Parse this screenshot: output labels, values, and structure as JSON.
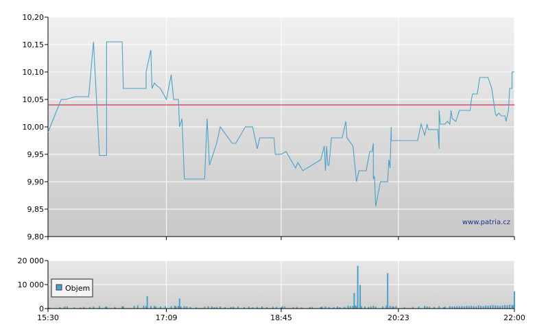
{
  "watermark": "www.patria.cz",
  "colors": {
    "price_line": "#4aa0c8",
    "reference_line": "#c8102e",
    "volume_bar": "#4aa0c8",
    "grid": "#ffffff",
    "plot_bg_top": "#f0f0f0",
    "plot_bg_bottom": "#c8c8c8"
  },
  "chart_data": [
    {
      "type": "line",
      "y_ticks": [
        "10,20",
        "10,15",
        "10,10",
        "10,05",
        "10,00",
        "9,95",
        "9,90",
        "9,85",
        "9,80"
      ],
      "ylim": [
        9.8,
        10.2
      ],
      "xlim": [
        "15:30",
        "22:00"
      ],
      "x_ticks": [
        "15:30",
        "17:09",
        "18:45",
        "20:23",
        "22:00"
      ],
      "reference_line": 10.04,
      "grid": true,
      "series": [
        {
          "points": [
            [
              "15:30",
              9.99
            ],
            [
              "15:41",
              10.05
            ],
            [
              "15:45",
              10.05
            ],
            [
              "15:53",
              10.055
            ],
            [
              "16:04",
              10.055
            ],
            [
              "16:08",
              10.155
            ],
            [
              "16:13",
              9.948
            ],
            [
              "16:19",
              9.948
            ],
            [
              "16:19",
              10.155
            ],
            [
              "16:32",
              10.155
            ],
            [
              "16:33",
              10.07
            ],
            [
              "16:52",
              10.07
            ],
            [
              "16:52",
              10.1
            ],
            [
              "16:56",
              10.14
            ],
            [
              "16:57",
              10.07
            ],
            [
              "16:59",
              10.08
            ],
            [
              "17:01",
              10.075
            ],
            [
              "17:04",
              10.07
            ],
            [
              "17:09",
              10.05
            ],
            [
              "17:13",
              10.095
            ],
            [
              "17:15",
              10.05
            ],
            [
              "17:19",
              10.05
            ],
            [
              "17:20",
              10.0
            ],
            [
              "17:22",
              10.015
            ],
            [
              "17:24",
              9.905
            ],
            [
              "17:41",
              9.905
            ],
            [
              "17:43",
              10.015
            ],
            [
              "17:45",
              9.93
            ],
            [
              "17:51",
              9.97
            ],
            [
              "17:54",
              10.0
            ],
            [
              "18:04",
              9.97
            ],
            [
              "18:07",
              9.97
            ],
            [
              "18:15",
              10.0
            ],
            [
              "18:21",
              10.0
            ],
            [
              "18:25",
              9.96
            ],
            [
              "18:27",
              9.98
            ],
            [
              "18:39",
              9.98
            ],
            [
              "18:40",
              9.95
            ],
            [
              "18:45",
              9.95
            ],
            [
              "18:49",
              9.955
            ],
            [
              "18:57",
              9.925
            ],
            [
              "18:59",
              9.935
            ],
            [
              "19:03",
              9.92
            ],
            [
              "19:18",
              9.94
            ],
            [
              "19:21",
              9.965
            ],
            [
              "19:22",
              9.92
            ],
            [
              "19:23",
              9.965
            ],
            [
              "19:24",
              9.93
            ],
            [
              "19:25",
              9.93
            ],
            [
              "19:27",
              9.98
            ],
            [
              "19:36",
              9.98
            ],
            [
              "19:39",
              10.01
            ],
            [
              "19:40",
              9.98
            ],
            [
              "19:45",
              9.965
            ],
            [
              "19:48",
              9.9
            ],
            [
              "19:50",
              9.92
            ],
            [
              "19:56",
              9.92
            ],
            [
              "19:59",
              9.955
            ],
            [
              "20:01",
              9.955
            ],
            [
              "20:02",
              9.97
            ],
            [
              "20:02",
              9.905
            ],
            [
              "20:03",
              9.91
            ],
            [
              "20:04",
              9.855
            ],
            [
              "20:08",
              9.9
            ],
            [
              "20:14",
              9.9
            ],
            [
              "20:15",
              9.94
            ],
            [
              "20:16",
              9.925
            ],
            [
              "20:17",
              10.0
            ],
            [
              "20:17",
              9.975
            ],
            [
              "20:39",
              9.975
            ],
            [
              "20:42",
              10.005
            ],
            [
              "20:45",
              9.985
            ],
            [
              "20:47",
              10.005
            ],
            [
              "20:48",
              9.995
            ],
            [
              "20:56",
              9.995
            ],
            [
              "20:57",
              9.96
            ],
            [
              "20:57",
              10.03
            ],
            [
              "20:58",
              10.005
            ],
            [
              "21:02",
              10.005
            ],
            [
              "21:04",
              10.01
            ],
            [
              "21:06",
              10.005
            ],
            [
              "21:07",
              10.03
            ],
            [
              "21:08",
              10.015
            ],
            [
              "21:11",
              10.01
            ],
            [
              "21:14",
              10.03
            ],
            [
              "21:23",
              10.03
            ],
            [
              "21:24",
              10.05
            ],
            [
              "21:25",
              10.06
            ],
            [
              "21:29",
              10.06
            ],
            [
              "21:31",
              10.09
            ],
            [
              "21:38",
              10.09
            ],
            [
              "21:41",
              10.07
            ],
            [
              "21:43",
              10.04
            ],
            [
              "21:44",
              10.025
            ],
            [
              "21:45",
              10.02
            ],
            [
              "21:47",
              10.025
            ],
            [
              "21:49",
              10.02
            ],
            [
              "21:52",
              10.02
            ],
            [
              "21:53",
              10.01
            ],
            [
              "21:55",
              10.03
            ],
            [
              "21:56",
              10.07
            ],
            [
              "21:58",
              10.07
            ],
            [
              "21:58",
              10.1
            ],
            [
              "22:00",
              10.1
            ]
          ]
        }
      ]
    },
    {
      "type": "bar",
      "y_ticks": [
        "20 000",
        "10 000",
        "0"
      ],
      "ylim": [
        0,
        20000
      ],
      "xlim": [
        "15:30",
        "22:00"
      ],
      "x_ticks": [
        "15:30",
        "17:09",
        "18:45",
        "20:23",
        "22:00"
      ],
      "legend": "Objem",
      "legend_position": "bottom-left",
      "series": [
        {
          "name": "Objem",
          "points": [
            [
              "15:31",
              400
            ],
            [
              "15:40",
              600
            ],
            [
              "15:44",
              900
            ],
            [
              "15:46",
              900
            ],
            [
              "15:52",
              500
            ],
            [
              "15:57",
              400
            ],
            [
              "16:00",
              700
            ],
            [
              "16:05",
              600
            ],
            [
              "16:08",
              800
            ],
            [
              "16:13",
              1000
            ],
            [
              "16:18",
              700
            ],
            [
              "16:19",
              900
            ],
            [
              "16:26",
              700
            ],
            [
              "16:32",
              1000
            ],
            [
              "16:33",
              900
            ],
            [
              "16:42",
              1100
            ],
            [
              "16:45",
              1300
            ],
            [
              "16:50",
              1200
            ],
            [
              "16:52",
              1000
            ],
            [
              "16:53",
              5200
            ],
            [
              "16:56",
              1000
            ],
            [
              "16:59",
              1100
            ],
            [
              "17:00",
              800
            ],
            [
              "17:04",
              900
            ],
            [
              "17:08",
              1000
            ],
            [
              "17:13",
              1000
            ],
            [
              "17:16",
              1200
            ],
            [
              "17:17",
              900
            ],
            [
              "17:19",
              1100
            ],
            [
              "17:20",
              4200
            ],
            [
              "17:21",
              900
            ],
            [
              "17:24",
              1000
            ],
            [
              "17:26",
              900
            ],
            [
              "17:29",
              700
            ],
            [
              "17:34",
              600
            ],
            [
              "17:41",
              800
            ],
            [
              "17:44",
              1000
            ],
            [
              "17:47",
              900
            ],
            [
              "17:49",
              600
            ],
            [
              "17:51",
              700
            ],
            [
              "17:54",
              900
            ],
            [
              "17:58",
              600
            ],
            [
              "18:03",
              700
            ],
            [
              "18:05",
              800
            ],
            [
              "18:09",
              900
            ],
            [
              "18:14",
              600
            ],
            [
              "18:18",
              900
            ],
            [
              "18:21",
              600
            ],
            [
              "18:25",
              700
            ],
            [
              "18:29",
              900
            ],
            [
              "18:33",
              600
            ],
            [
              "18:38",
              800
            ],
            [
              "18:41",
              700
            ],
            [
              "18:45",
              600
            ],
            [
              "18:46",
              1000
            ],
            [
              "18:48",
              900
            ],
            [
              "18:55",
              600
            ],
            [
              "18:58",
              700
            ],
            [
              "19:02",
              500
            ],
            [
              "19:09",
              600
            ],
            [
              "19:11",
              700
            ],
            [
              "19:18",
              700
            ],
            [
              "19:19",
              800
            ],
            [
              "19:22",
              900
            ],
            [
              "19:25",
              700
            ],
            [
              "19:29",
              600
            ],
            [
              "19:32",
              900
            ],
            [
              "19:34",
              600
            ],
            [
              "19:38",
              700
            ],
            [
              "19:41",
              1200
            ],
            [
              "19:43",
              1000
            ],
            [
              "19:45",
              1100
            ],
            [
              "19:46",
              6500
            ],
            [
              "19:47",
              1300
            ],
            [
              "19:48",
              1000
            ],
            [
              "19:49",
              17800
            ],
            [
              "19:51",
              9900
            ],
            [
              "19:52",
              1000
            ],
            [
              "19:55",
              900
            ],
            [
              "19:58",
              700
            ],
            [
              "20:00",
              900
            ],
            [
              "20:02",
              1200
            ],
            [
              "20:04",
              800
            ],
            [
              "20:10",
              900
            ],
            [
              "20:13",
              1300
            ],
            [
              "20:14",
              14800
            ],
            [
              "20:16",
              1100
            ],
            [
              "20:18",
              900
            ],
            [
              "20:19",
              800
            ],
            [
              "20:21",
              1000
            ],
            [
              "20:28",
              600
            ],
            [
              "20:35",
              700
            ],
            [
              "20:40",
              900
            ],
            [
              "20:45",
              1100
            ],
            [
              "20:47",
              900
            ],
            [
              "20:49",
              800
            ],
            [
              "20:53",
              700
            ],
            [
              "20:57",
              1000
            ],
            [
              "21:01",
              600
            ],
            [
              "21:02",
              800
            ],
            [
              "21:06",
              1000
            ],
            [
              "21:08",
              900
            ],
            [
              "21:10",
              900
            ],
            [
              "21:12",
              1000
            ],
            [
              "21:14",
              900
            ],
            [
              "21:16",
              1000
            ],
            [
              "21:18",
              900
            ],
            [
              "21:20",
              1100
            ],
            [
              "21:22",
              1000
            ],
            [
              "21:24",
              1200
            ],
            [
              "21:26",
              1000
            ],
            [
              "21:28",
              900
            ],
            [
              "21:30",
              1300
            ],
            [
              "21:32",
              1100
            ],
            [
              "21:34",
              1000
            ],
            [
              "21:36",
              1300
            ],
            [
              "21:38",
              1200
            ],
            [
              "21:40",
              1300
            ],
            [
              "21:42",
              1500
            ],
            [
              "21:44",
              1300
            ],
            [
              "21:46",
              1200
            ],
            [
              "21:48",
              1100
            ],
            [
              "21:50",
              1300
            ],
            [
              "21:52",
              1500
            ],
            [
              "21:54",
              1400
            ],
            [
              "21:56",
              1600
            ],
            [
              "21:58",
              1500
            ],
            [
              "21:59",
              1400
            ],
            [
              "22:00",
              7200
            ]
          ]
        }
      ]
    }
  ]
}
